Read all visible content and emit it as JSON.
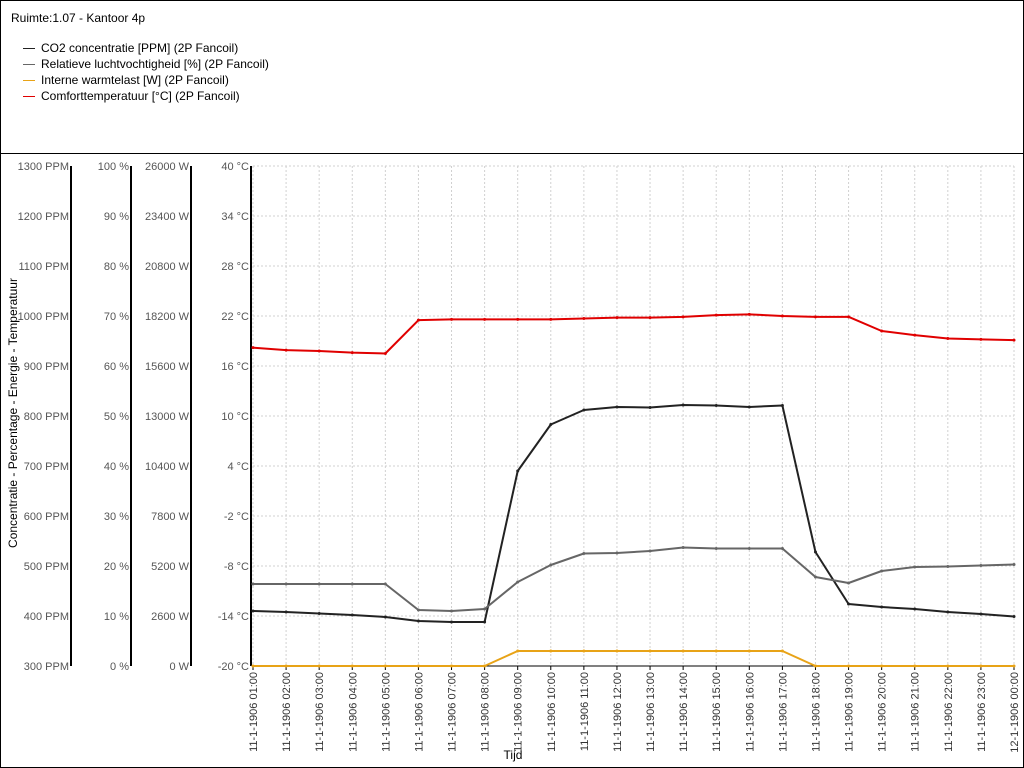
{
  "header": {
    "room_title": "Ruimte:1.07 - Kantoor 4p"
  },
  "legend": [
    {
      "label": "CO2 concentratie [PPM] (2P Fancoil)",
      "color": "#222222"
    },
    {
      "label": "Relatieve luchtvochtigheid [%] (2P Fancoil)",
      "color": "#666666"
    },
    {
      "label": "Interne warmtelast [W] (2P Fancoil)",
      "color": "#e8a317"
    },
    {
      "label": "Comforttemperatuur [°C] (2P Fancoil)",
      "color": "#e00000"
    }
  ],
  "chart_data": {
    "type": "line",
    "ylabel": "Concentratie - Percentage - Energie - Temperatuur",
    "xlabel": "Tijd",
    "grid": true,
    "axes": [
      {
        "name": "co2",
        "min": 300,
        "max": 1300,
        "ticks": [
          "1300 PPM",
          "1200 PPM",
          "1100 PPM",
          "1000 PPM",
          "900 PPM",
          "800 PPM",
          "700 PPM",
          "600 PPM",
          "500 PPM",
          "400 PPM",
          "300 PPM"
        ]
      },
      {
        "name": "rh",
        "min": 0,
        "max": 100,
        "ticks": [
          "100 %",
          "90 %",
          "80 %",
          "70 %",
          "60 %",
          "50 %",
          "40 %",
          "30 %",
          "20 %",
          "10 %",
          "0 %"
        ]
      },
      {
        "name": "load",
        "min": 0,
        "max": 26000,
        "ticks": [
          "26000 W",
          "23400 W",
          "20800 W",
          "18200 W",
          "15600 W",
          "13000 W",
          "10400 W",
          "7800 W",
          "5200 W",
          "2600 W",
          "0 W"
        ]
      },
      {
        "name": "temp",
        "min": -20,
        "max": 40,
        "ticks": [
          "40 °C",
          "34 °C",
          "28 °C",
          "22 °C",
          "16 °C",
          "10 °C",
          "4 °C",
          "-2 °C",
          "-8 °C",
          "-14 °C",
          "-20 °C"
        ]
      }
    ],
    "x": [
      "11-1-1906 01:00",
      "11-1-1906 02:00",
      "11-1-1906 03:00",
      "11-1-1906 04:00",
      "11-1-1906 05:00",
      "11-1-1906 06:00",
      "11-1-1906 07:00",
      "11-1-1906 08:00",
      "11-1-1906 09:00",
      "11-1-1906 10:00",
      "11-1-1906 11:00",
      "11-1-1906 12:00",
      "11-1-1906 13:00",
      "11-1-1906 14:00",
      "11-1-1906 15:00",
      "11-1-1906 16:00",
      "11-1-1906 17:00",
      "11-1-1906 18:00",
      "11-1-1906 19:00",
      "11-1-1906 20:00",
      "11-1-1906 21:00",
      "11-1-1906 22:00",
      "11-1-1906 23:00",
      "12-1-1906 00:00"
    ],
    "series": [
      {
        "name": "CO2 concentratie [PPM] (2P Fancoil)",
        "axis": "co2",
        "color": "#222222",
        "values": [
          410,
          408,
          405,
          402,
          398,
          390,
          388,
          388,
          690,
          783,
          812,
          818,
          817,
          822,
          821,
          818,
          821,
          528,
          424,
          418,
          414,
          408,
          404,
          399
        ]
      },
      {
        "name": "Relatieve luchtvochtigheid [%] (2P Fancoil)",
        "axis": "rh",
        "color": "#666666",
        "values": [
          16.4,
          16.4,
          16.4,
          16.4,
          16.4,
          11.2,
          11,
          11.4,
          16.8,
          20.2,
          22.5,
          22.6,
          23,
          23.7,
          23.5,
          23.5,
          23.5,
          17.8,
          16.6,
          19,
          19.8,
          19.9,
          20.1,
          20.3
        ]
      },
      {
        "name": "Interne warmtelast [W] (2P Fancoil)",
        "axis": "load",
        "color": "#e8a317",
        "values": [
          0,
          0,
          0,
          0,
          0,
          0,
          0,
          0,
          780,
          780,
          780,
          780,
          780,
          780,
          780,
          780,
          780,
          0,
          0,
          0,
          0,
          0,
          0,
          0
        ]
      },
      {
        "name": "Comforttemperatuur [°C] (2P Fancoil)",
        "axis": "temp",
        "color": "#e00000",
        "values": [
          18.2,
          17.9,
          17.8,
          17.6,
          17.5,
          21.5,
          21.6,
          21.6,
          21.6,
          21.6,
          21.7,
          21.8,
          21.8,
          21.9,
          22.1,
          22.2,
          22,
          21.9,
          21.9,
          20.2,
          19.7,
          19.3,
          19.2,
          19.1
        ]
      }
    ]
  }
}
